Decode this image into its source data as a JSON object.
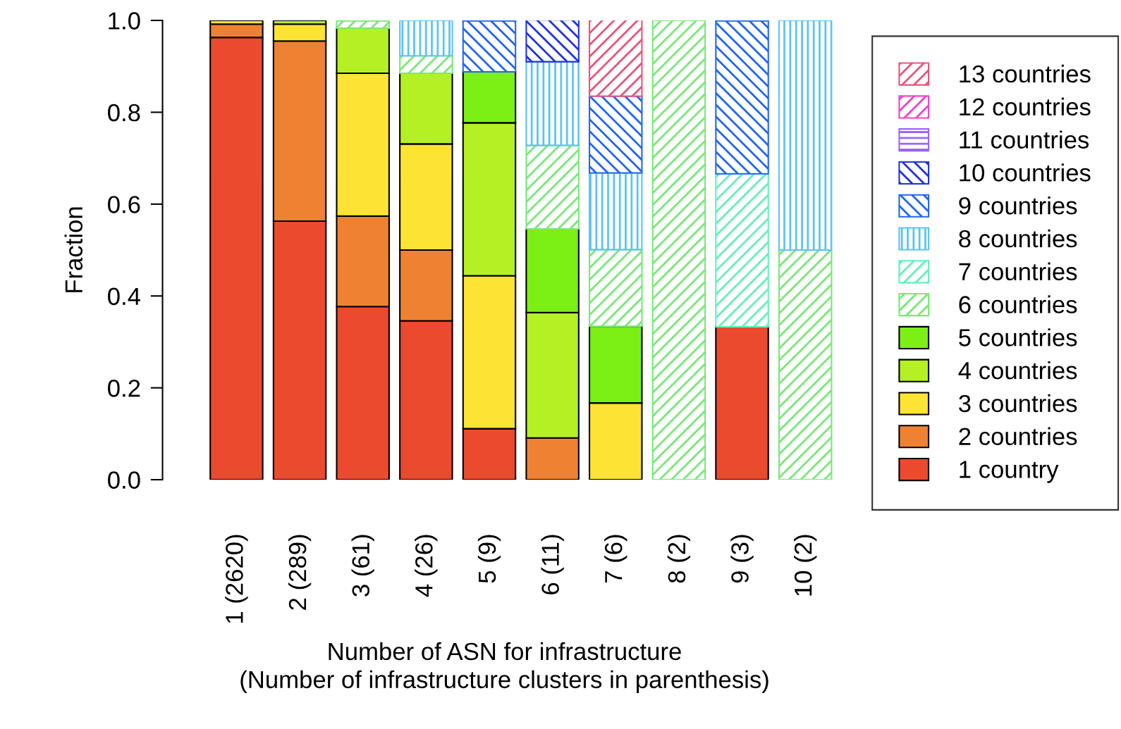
{
  "chart_data": {
    "type": "bar",
    "stacked": true,
    "xlabel": "Number of ASN for infrastructure\n(Number of infrastructure clusters in parenthesis)",
    "ylabel": "Fraction",
    "categories": [
      "1 (2620)",
      "2 (289)",
      "3 (61)",
      "4 (26)",
      "5 (9)",
      "6 (11)",
      "7 (6)",
      "8 (2)",
      "9 (3)",
      "10 (2)"
    ],
    "ylim": [
      0,
      1
    ],
    "yticks": [
      {
        "value": 0,
        "label": "0.0"
      },
      {
        "value": 0.2,
        "label": "0.2"
      },
      {
        "value": 0.4,
        "label": "0.4"
      },
      {
        "value": 0.6,
        "label": "0.6"
      },
      {
        "value": 0.8,
        "label": "0.8"
      },
      {
        "value": 1,
        "label": "1.0"
      }
    ],
    "grid": false,
    "legend": "right",
    "series": [
      {
        "name": "1 country",
        "color": "#eb4a2e",
        "values": [
          0.963,
          0.563,
          0.377,
          0.346,
          0.111,
          0,
          0,
          0,
          0.333,
          0
        ]
      },
      {
        "name": "2 countries",
        "color": "#ee8232",
        "values": [
          0.029,
          0.392,
          0.197,
          0.154,
          0,
          0.091,
          0,
          0,
          0,
          0
        ]
      },
      {
        "name": "3 countries",
        "color": "#fde333",
        "values": [
          0.008,
          0.037,
          0.311,
          0.231,
          0.333,
          0,
          0.167,
          0,
          0,
          0
        ]
      },
      {
        "name": "4 countries",
        "color": "#b4f024",
        "values": [
          0,
          0.008,
          0.098,
          0.154,
          0.333,
          0.273,
          0,
          0,
          0,
          0
        ]
      },
      {
        "name": "5 countries",
        "color": "#7cef14",
        "values": [
          0,
          0,
          0,
          0,
          0.111,
          0.182,
          0.167,
          0,
          0,
          0
        ]
      },
      {
        "name": "6 countries",
        "color": "#78e878",
        "values": [
          0,
          0,
          0.016,
          0.038,
          0,
          0.182,
          0.167,
          1,
          0,
          0.5
        ]
      },
      {
        "name": "7 countries",
        "color": "#66eebb",
        "values": [
          0,
          0,
          0,
          0,
          0,
          0,
          0,
          0,
          0.333,
          0
        ]
      },
      {
        "name": "8 countries",
        "color": "#5bc4f5",
        "values": [
          0,
          0,
          0,
          0.077,
          0,
          0.182,
          0.167,
          0,
          0,
          0.5
        ]
      },
      {
        "name": "9 countries",
        "color": "#2266ee",
        "values": [
          0,
          0,
          0,
          0,
          0.111,
          0,
          0.167,
          0,
          0.333,
          0
        ]
      },
      {
        "name": "10 countries",
        "color": "#2233dd",
        "values": [
          0,
          0,
          0,
          0,
          0,
          0.091,
          0,
          0,
          0,
          0
        ]
      },
      {
        "name": "11 countries",
        "color": "#9966ff",
        "values": [
          0,
          0,
          0,
          0,
          0,
          0,
          0,
          0,
          0,
          0
        ]
      },
      {
        "name": "12 countries",
        "color": "#ee44cc",
        "values": [
          0,
          0,
          0,
          0,
          0,
          0,
          0,
          0,
          0,
          0
        ]
      },
      {
        "name": "13 countries",
        "color": "#e8557a",
        "values": [
          0,
          0,
          0,
          0,
          0,
          0,
          0.167,
          0,
          0,
          0
        ]
      }
    ]
  }
}
